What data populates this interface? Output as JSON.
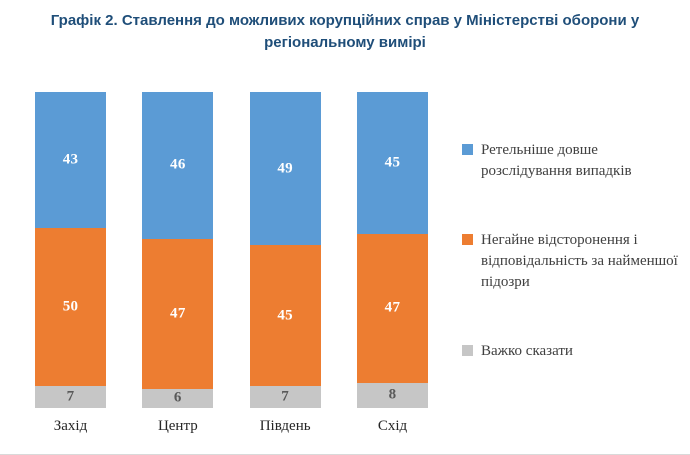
{
  "title": "Графік 2. Ставлення до можливих корупційних справ у Міністерстві оборони у регіональному вимірі",
  "chart_data": {
    "type": "bar",
    "stacked": true,
    "title": "Графік 2. Ставлення до можливих корупційних справ у Міністерстві оборони у регіональному вимірі",
    "categories": [
      "Захід",
      "Центр",
      "Південь",
      "Схід"
    ],
    "series": [
      {
        "name": "Ретельніше довше розслідування випадків",
        "color": "#5b9bd5",
        "label_color": "#ffffff",
        "values": [
          43,
          46,
          49,
          45
        ]
      },
      {
        "name": "Негайне відсторонення і відповідальність за найменшої підозри",
        "color": "#ed7d31",
        "label_color": "#ffffff",
        "values": [
          50,
          47,
          45,
          47
        ]
      },
      {
        "name": "Важко сказати",
        "color": "#c6c6c6",
        "label_color": "#595959",
        "values": [
          7,
          6,
          7,
          8
        ]
      }
    ],
    "ylim": [
      0,
      100
    ],
    "grid": false,
    "legend_position": "right",
    "xlabel": "",
    "ylabel": ""
  }
}
